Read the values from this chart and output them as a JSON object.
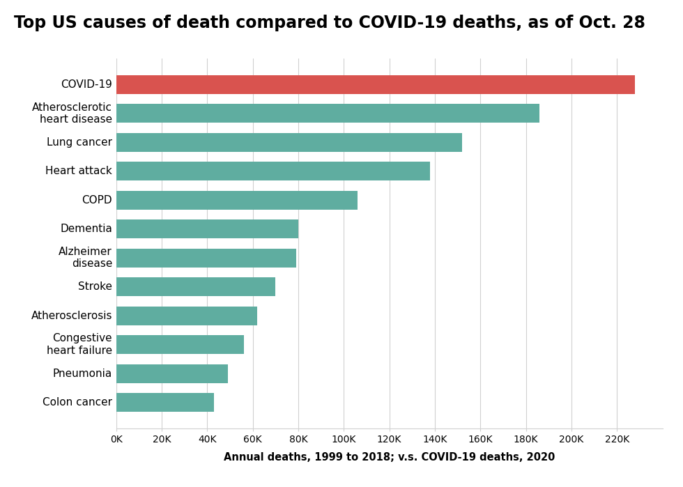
{
  "title": "Top US causes of death compared to COVID-19 deaths, as of Oct. 28",
  "xlabel": "Annual deaths, 1999 to 2018; v.s. COVID-19 deaths, 2020",
  "categories": [
    "COVID-19",
    "Atherosclerotic\nheart disease",
    "Lung cancer",
    "Heart attack",
    "COPD",
    "Dementia",
    "Alzheimer\ndisease",
    "Stroke",
    "Atherosclerosis",
    "Congestive\nheart failure",
    "Pneumonia",
    "Colon cancer"
  ],
  "values": [
    228000,
    186000,
    152000,
    138000,
    106000,
    80000,
    79000,
    70000,
    62000,
    56000,
    49000,
    43000
  ],
  "bar_colors": [
    "#d9534f",
    "#5fada0",
    "#5fada0",
    "#5fada0",
    "#5fada0",
    "#5fada0",
    "#5fada0",
    "#5fada0",
    "#5fada0",
    "#5fada0",
    "#5fada0",
    "#5fada0"
  ],
  "xlim": [
    0,
    240000
  ],
  "xticks": [
    0,
    20000,
    40000,
    60000,
    80000,
    100000,
    120000,
    140000,
    160000,
    180000,
    200000,
    220000
  ],
  "xtick_labels": [
    "0K",
    "20K",
    "40K",
    "60K",
    "80K",
    "100K",
    "120K",
    "140K",
    "160K",
    "180K",
    "200K",
    "220K"
  ],
  "background_color": "#ffffff",
  "title_fontsize": 17,
  "label_fontsize": 11,
  "tick_fontsize": 10,
  "xlabel_fontsize": 10.5
}
